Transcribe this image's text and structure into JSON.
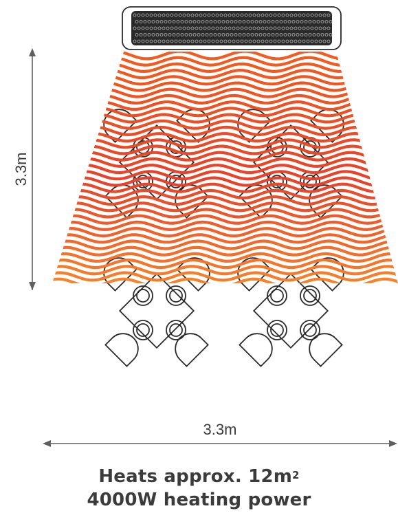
{
  "labels": {
    "height": "3.3m",
    "width": "3.3m"
  },
  "caption": {
    "line1_prefix": "Heats approx. 12m",
    "line1_superscript": "2",
    "line2": "4000W heating power"
  },
  "colors": {
    "wave_top": "#f25c1e",
    "wave_mid": "#e8422a",
    "wave_bottom": "#ffa12a",
    "outline": "#2a2a2a",
    "dimension_line": "#606060",
    "text": "#3b3b3b"
  },
  "heater": {
    "icon": "patio-heater-icon"
  },
  "furniture": {
    "icon": "table-and-chairs-icon",
    "count": 4
  }
}
